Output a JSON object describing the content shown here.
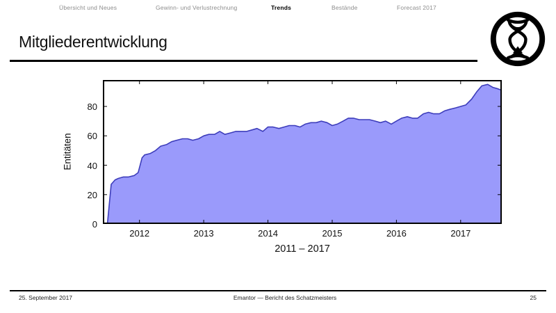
{
  "nav": {
    "items": [
      {
        "label": "Übersicht und Neues",
        "active": false
      },
      {
        "label": "Gewinn- und Verlustrechnung",
        "active": false
      },
      {
        "label": "Trends",
        "active": true
      },
      {
        "label": "Bestände",
        "active": false
      },
      {
        "label": "Forecast 2017",
        "active": false
      }
    ]
  },
  "slide": {
    "title": "Mitgliederentwicklung"
  },
  "logo": {
    "icon": "hourglass-in-circle",
    "color": "#000000"
  },
  "chart_data": {
    "type": "area",
    "title": "",
    "xlabel": "2011 – 2017",
    "ylabel": "Entitäten",
    "xlim": [
      2011.43,
      2017.64
    ],
    "ylim": [
      0,
      98
    ],
    "xticks": [
      2012,
      2013,
      2014,
      2015,
      2016,
      2017
    ],
    "xtick_labels": [
      "2012",
      "2013",
      "2014",
      "2015",
      "2016",
      "2017"
    ],
    "yticks": [
      0,
      20,
      40,
      60,
      80
    ],
    "ytick_labels": [
      "0",
      "20",
      "40",
      "60",
      "80"
    ],
    "grid": false,
    "legend": "none",
    "fill_color": "#9a9afb",
    "line_color": "#3d3dbb",
    "points": [
      [
        2011.5,
        0
      ],
      [
        2011.56,
        27
      ],
      [
        2011.62,
        30
      ],
      [
        2011.67,
        31
      ],
      [
        2011.75,
        32
      ],
      [
        2011.83,
        32
      ],
      [
        2011.92,
        33
      ],
      [
        2011.98,
        35
      ],
      [
        2012.04,
        45
      ],
      [
        2012.08,
        47
      ],
      [
        2012.17,
        48
      ],
      [
        2012.25,
        50
      ],
      [
        2012.33,
        53
      ],
      [
        2012.42,
        54
      ],
      [
        2012.5,
        56
      ],
      [
        2012.58,
        57
      ],
      [
        2012.67,
        58
      ],
      [
        2012.75,
        58
      ],
      [
        2012.83,
        57
      ],
      [
        2012.92,
        58
      ],
      [
        2013.0,
        60
      ],
      [
        2013.08,
        61
      ],
      [
        2013.17,
        61
      ],
      [
        2013.25,
        63
      ],
      [
        2013.33,
        61
      ],
      [
        2013.42,
        62
      ],
      [
        2013.5,
        63
      ],
      [
        2013.58,
        63
      ],
      [
        2013.67,
        63
      ],
      [
        2013.75,
        64
      ],
      [
        2013.83,
        65
      ],
      [
        2013.92,
        63
      ],
      [
        2014.0,
        66
      ],
      [
        2014.08,
        66
      ],
      [
        2014.17,
        65
      ],
      [
        2014.25,
        66
      ],
      [
        2014.33,
        67
      ],
      [
        2014.42,
        67
      ],
      [
        2014.5,
        66
      ],
      [
        2014.58,
        68
      ],
      [
        2014.67,
        69
      ],
      [
        2014.75,
        69
      ],
      [
        2014.83,
        70
      ],
      [
        2014.92,
        69
      ],
      [
        2015.0,
        67
      ],
      [
        2015.08,
        68
      ],
      [
        2015.17,
        70
      ],
      [
        2015.25,
        72
      ],
      [
        2015.33,
        72
      ],
      [
        2015.42,
        71
      ],
      [
        2015.5,
        71
      ],
      [
        2015.58,
        71
      ],
      [
        2015.67,
        70
      ],
      [
        2015.75,
        69
      ],
      [
        2015.83,
        70
      ],
      [
        2015.92,
        68
      ],
      [
        2016.0,
        70
      ],
      [
        2016.08,
        72
      ],
      [
        2016.17,
        73
      ],
      [
        2016.25,
        72
      ],
      [
        2016.33,
        72
      ],
      [
        2016.42,
        75
      ],
      [
        2016.5,
        76
      ],
      [
        2016.58,
        75
      ],
      [
        2016.67,
        75
      ],
      [
        2016.75,
        77
      ],
      [
        2016.83,
        78
      ],
      [
        2016.92,
        79
      ],
      [
        2017.0,
        80
      ],
      [
        2017.08,
        81
      ],
      [
        2017.17,
        85
      ],
      [
        2017.25,
        90
      ],
      [
        2017.33,
        94
      ],
      [
        2017.42,
        95
      ],
      [
        2017.5,
        93
      ],
      [
        2017.58,
        92
      ],
      [
        2017.64,
        91
      ]
    ]
  },
  "footer": {
    "date": "25. September 2017",
    "center": "Emantor — Bericht des Schatzmeisters",
    "page": "25"
  }
}
